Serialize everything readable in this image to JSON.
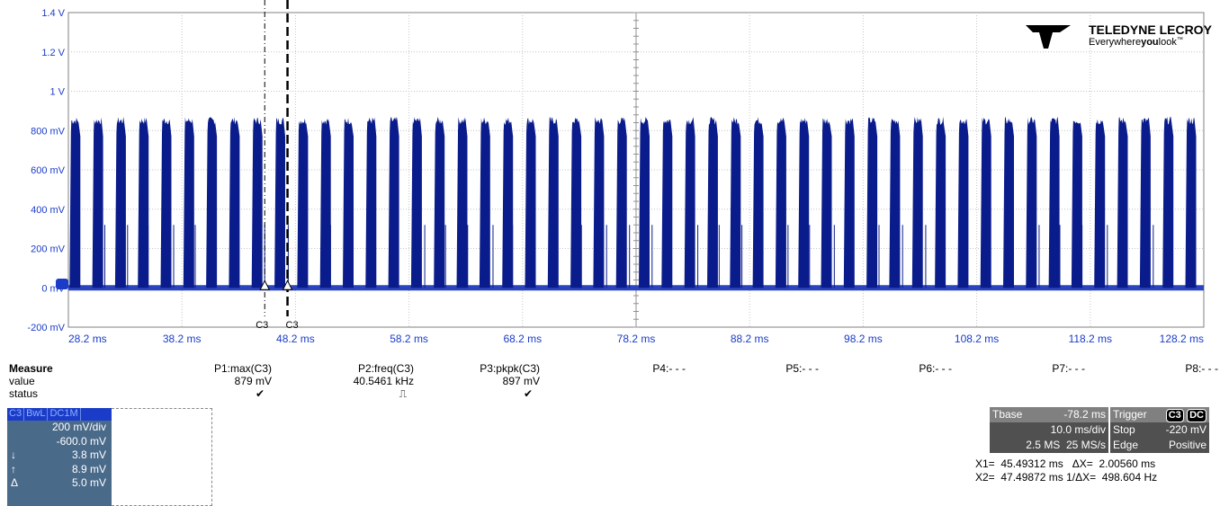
{
  "logo": {
    "brand": "TELEDYNE LECROY",
    "tagline_a": "Everywhere",
    "tagline_b": "you",
    "tagline_c": "look",
    "tm": "™"
  },
  "colors": {
    "trace": "#0a1c8c",
    "grid": "#b0b0b0",
    "axis": "#606060"
  },
  "chart_data": {
    "type": "line",
    "title": "",
    "y_tick_labels": [
      "1.4 V",
      "1.2 V",
      "1 V",
      "800 mV",
      "600 mV",
      "400 mV",
      "200 mV",
      "0 mV",
      "-200 mV"
    ],
    "x_tick_labels": [
      "28.2 ms",
      "38.2 ms",
      "48.2 ms",
      "58.2 ms",
      "68.2 ms",
      "78.2 ms",
      "88.2 ms",
      "98.2 ms",
      "108.2 ms",
      "118.2 ms",
      "128.2 ms"
    ],
    "xlim_ms": [
      28.2,
      128.2
    ],
    "ylim_mV": [
      -200,
      1400
    ],
    "grid": true,
    "baseline_mV": 0,
    "burst_peak_mV": 870,
    "burst_period_ms": 2.0056,
    "burst_width_ms": 0.95,
    "burst_first_start_ms": 28.3,
    "cursor_labels": [
      "C3",
      "C3"
    ],
    "cursors_ms": [
      45.49312,
      47.49872
    ]
  },
  "measure": {
    "header": "Measure",
    "row_value": "value",
    "row_status": "status",
    "params": [
      {
        "name": "P1:max(C3)",
        "value": "879 mV",
        "status": "✔"
      },
      {
        "name": "P2:freq(C3)",
        "value": "40.5461 kHz",
        "status": "⎍"
      },
      {
        "name": "P3:pkpk(C3)",
        "value": "897 mV",
        "status": "✔"
      },
      {
        "name": "P4:- - -",
        "value": "",
        "status": ""
      },
      {
        "name": "P5:- - -",
        "value": "",
        "status": ""
      },
      {
        "name": "P6:- - -",
        "value": "",
        "status": ""
      },
      {
        "name": "P7:- - -",
        "value": "",
        "status": ""
      },
      {
        "name": "P8:- - -",
        "value": "",
        "status": ""
      }
    ]
  },
  "channel": {
    "tags": [
      "C3",
      "BwL",
      "DC1M"
    ],
    "vdiv": "200 mV/div",
    "offset": "-600.0 mV",
    "cur1_sym": "↓",
    "cur1": "3.8 mV",
    "cur2_sym": "↑",
    "cur2": "8.9 mV",
    "delta_sym": "Δ",
    "delta": "5.0 mV"
  },
  "timebase": {
    "label": "Tbase",
    "delay": "-78.2 ms",
    "tdiv": "10.0 ms/div",
    "samples": "2.5 MS",
    "rate": "25 MS/s",
    "trig_label": "Trigger",
    "trig_ch": "C3",
    "trig_cpl": "DC",
    "mode": "Stop",
    "level": "-220 mV",
    "type": "Edge",
    "slope": "Positive"
  },
  "cursor_readout": {
    "x1": "X1=  45.49312 ms",
    "dx": "ΔX=  2.00560 ms",
    "x2": "X2=  47.49872 ms",
    "inv": "1/ΔX=  498.604 Hz"
  }
}
